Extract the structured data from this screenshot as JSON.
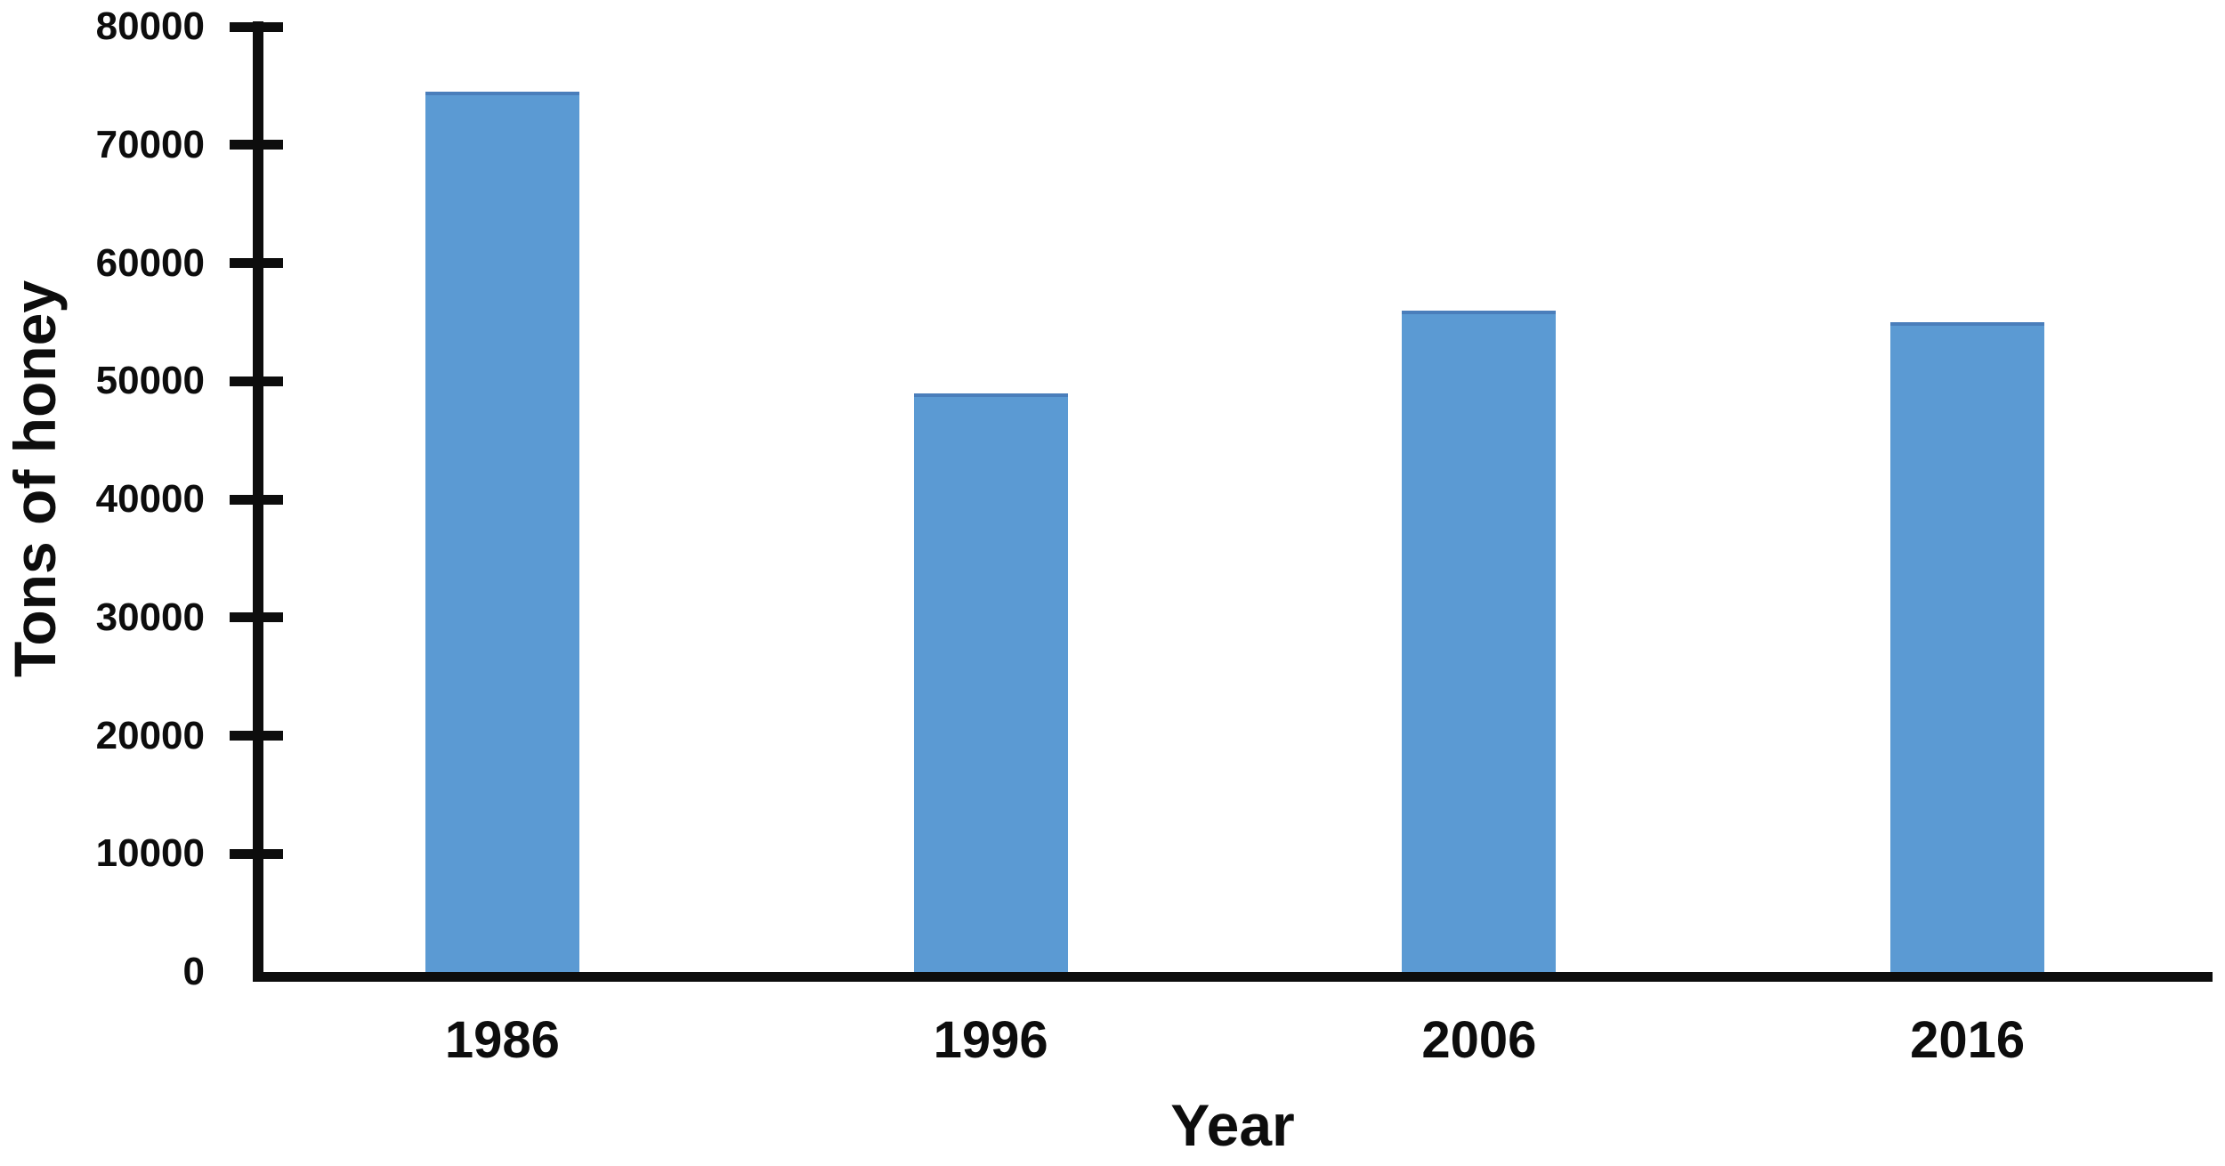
{
  "chart_data": {
    "type": "bar",
    "title": "",
    "categories": [
      "1986",
      "1996",
      "2006",
      "2016"
    ],
    "values": [
      74500,
      49000,
      56000,
      55000
    ],
    "xlabel": "Year",
    "ylabel": "Tons of honey",
    "ylim": [
      0,
      80000
    ],
    "yticks": [
      0,
      10000,
      20000,
      30000,
      40000,
      50000,
      60000,
      70000,
      80000
    ],
    "grid": false,
    "legend": null,
    "colors": {
      "bar_fill": "#5b9ad3",
      "bar_border": "#4a7ebb",
      "axis": "#0d0d0d",
      "text": "#0d0d0d",
      "background": "#ffffff"
    }
  }
}
